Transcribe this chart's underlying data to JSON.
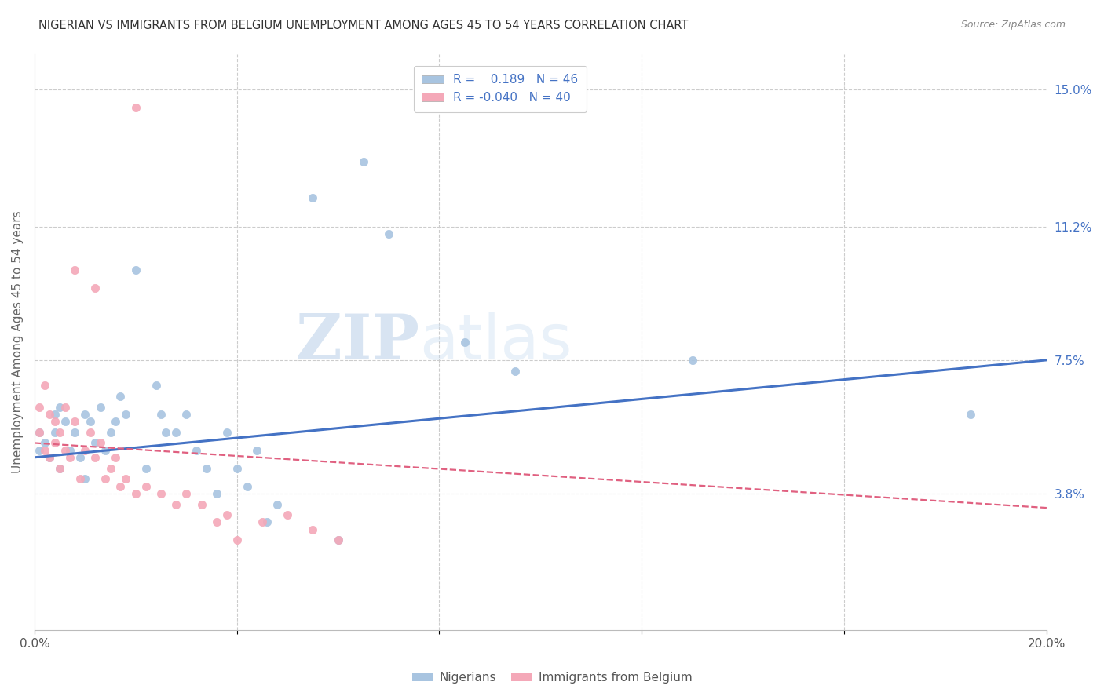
{
  "title": "NIGERIAN VS IMMIGRANTS FROM BELGIUM UNEMPLOYMENT AMONG AGES 45 TO 54 YEARS CORRELATION CHART",
  "source": "Source: ZipAtlas.com",
  "ylabel": "Unemployment Among Ages 45 to 54 years",
  "xlim": [
    0.0,
    0.2
  ],
  "ylim": [
    0.0,
    0.16
  ],
  "xtick_positions": [
    0.0,
    0.04,
    0.08,
    0.12,
    0.16,
    0.2
  ],
  "xticklabels": [
    "0.0%",
    "",
    "",
    "",
    "",
    "20.0%"
  ],
  "ytick_right_labels": [
    "3.8%",
    "7.5%",
    "11.2%",
    "15.0%"
  ],
  "ytick_right_values": [
    0.038,
    0.075,
    0.112,
    0.15
  ],
  "legend_labels": [
    "Nigerians",
    "Immigrants from Belgium"
  ],
  "blue_color": "#a8c4e0",
  "pink_color": "#f4a8b8",
  "blue_line_color": "#4472c4",
  "pink_line_color": "#e06080",
  "title_color": "#333333",
  "watermark_zip": "ZIP",
  "watermark_atlas": "atlas",
  "R_nigerian": 0.189,
  "N_nigerian": 46,
  "R_belgium": -0.04,
  "N_belgium": 40,
  "nigerian_x": [
    0.001,
    0.001,
    0.002,
    0.003,
    0.004,
    0.004,
    0.005,
    0.005,
    0.006,
    0.007,
    0.008,
    0.009,
    0.01,
    0.01,
    0.011,
    0.012,
    0.013,
    0.014,
    0.015,
    0.016,
    0.017,
    0.018,
    0.02,
    0.022,
    0.024,
    0.025,
    0.026,
    0.028,
    0.03,
    0.032,
    0.034,
    0.036,
    0.038,
    0.04,
    0.042,
    0.044,
    0.046,
    0.048,
    0.055,
    0.06,
    0.065,
    0.07,
    0.085,
    0.095,
    0.13,
    0.185
  ],
  "nigerian_y": [
    0.05,
    0.055,
    0.052,
    0.048,
    0.055,
    0.06,
    0.045,
    0.062,
    0.058,
    0.05,
    0.055,
    0.048,
    0.06,
    0.042,
    0.058,
    0.052,
    0.062,
    0.05,
    0.055,
    0.058,
    0.065,
    0.06,
    0.1,
    0.045,
    0.068,
    0.06,
    0.055,
    0.055,
    0.06,
    0.05,
    0.045,
    0.038,
    0.055,
    0.045,
    0.04,
    0.05,
    0.03,
    0.035,
    0.12,
    0.025,
    0.13,
    0.11,
    0.08,
    0.072,
    0.075,
    0.06
  ],
  "belgium_x": [
    0.001,
    0.001,
    0.002,
    0.002,
    0.003,
    0.003,
    0.004,
    0.004,
    0.005,
    0.005,
    0.006,
    0.006,
    0.007,
    0.008,
    0.009,
    0.01,
    0.011,
    0.012,
    0.013,
    0.014,
    0.015,
    0.016,
    0.017,
    0.018,
    0.02,
    0.022,
    0.025,
    0.028,
    0.03,
    0.033,
    0.036,
    0.038,
    0.04,
    0.045,
    0.05,
    0.055,
    0.06,
    0.008,
    0.012,
    0.02
  ],
  "belgium_y": [
    0.055,
    0.062,
    0.05,
    0.068,
    0.048,
    0.06,
    0.052,
    0.058,
    0.045,
    0.055,
    0.05,
    0.062,
    0.048,
    0.058,
    0.042,
    0.05,
    0.055,
    0.048,
    0.052,
    0.042,
    0.045,
    0.048,
    0.04,
    0.042,
    0.038,
    0.04,
    0.038,
    0.035,
    0.038,
    0.035,
    0.03,
    0.032,
    0.025,
    0.03,
    0.032,
    0.028,
    0.025,
    0.1,
    0.095,
    0.145
  ],
  "nig_line_x": [
    0.0,
    0.2
  ],
  "nig_line_y": [
    0.048,
    0.075
  ],
  "bel_line_x": [
    0.0,
    0.2
  ],
  "bel_line_y": [
    0.052,
    0.034
  ]
}
